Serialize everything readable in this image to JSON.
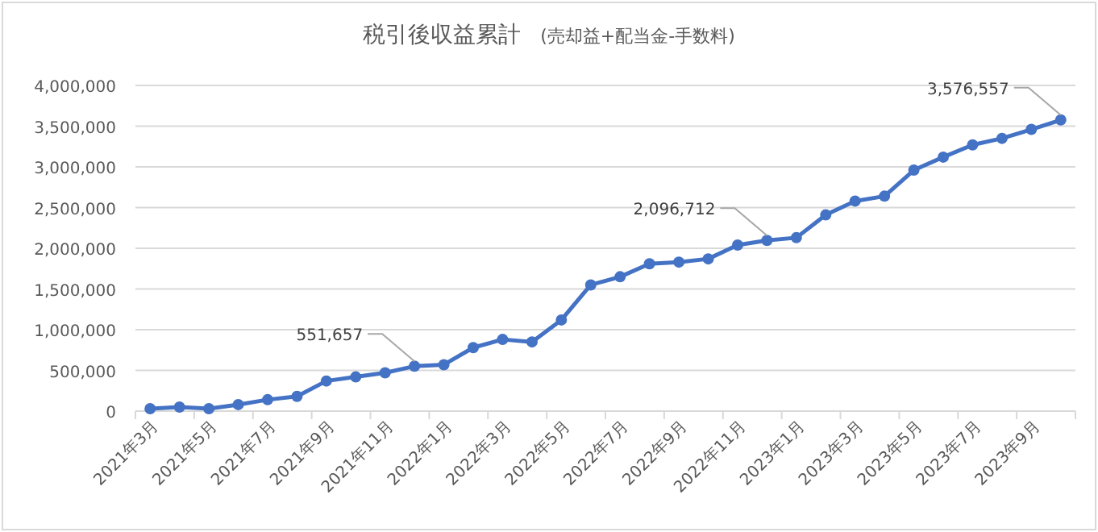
{
  "chart_data": {
    "type": "line",
    "title": "税引後収益累計",
    "subtitle": "(売却益+配当金-手数料)",
    "categories": [
      "2021年3月",
      null,
      "2021年5月",
      null,
      "2021年7月",
      null,
      "2021年9月",
      null,
      "2021年11月",
      null,
      "2022年1月",
      null,
      "2022年3月",
      null,
      "2022年5月",
      null,
      "2022年7月",
      null,
      "2022年9月",
      null,
      "2022年11月",
      null,
      "2023年1月",
      null,
      "2023年3月",
      null,
      "2023年5月",
      null,
      "2023年7月",
      null,
      "2023年9月",
      null
    ],
    "series": [
      {
        "color": "#4472c4",
        "values": [
          30000,
          50000,
          30000,
          80000,
          140000,
          180000,
          370000,
          420000,
          470000,
          551657,
          570000,
          780000,
          880000,
          850000,
          1120000,
          1550000,
          1650000,
          1810000,
          1830000,
          1870000,
          2040000,
          2096712,
          2130000,
          2410000,
          2580000,
          2640000,
          2960000,
          3120000,
          3270000,
          3350000,
          3460000,
          3576557
        ],
        "value_labels": [
          null,
          null,
          null,
          null,
          null,
          null,
          null,
          null,
          null,
          "551,657",
          null,
          null,
          null,
          null,
          null,
          null,
          null,
          null,
          null,
          null,
          null,
          "2,096,712",
          null,
          null,
          null,
          null,
          null,
          null,
          null,
          null,
          null,
          "3,576,557"
        ]
      }
    ],
    "ylim": [
      0,
      4000000
    ],
    "yticks": [
      0,
      {
        "value": 500000,
        "label": "500,000"
      },
      {
        "value": 1000000,
        "label": "1,000,000"
      },
      {
        "value": 1500000,
        "label": "1,500,000"
      },
      {
        "value": 2000000,
        "label": "2,000,000"
      },
      {
        "value": 2500000,
        "label": "2,500,000"
      },
      {
        "value": 3000000,
        "label": "3,000,000"
      },
      {
        "value": 3500000,
        "label": "3,500,000"
      },
      {
        "value": 4000000,
        "label": "4,000,000"
      }
    ],
    "grid": "y",
    "marker": "circle",
    "line_style": "solid"
  }
}
